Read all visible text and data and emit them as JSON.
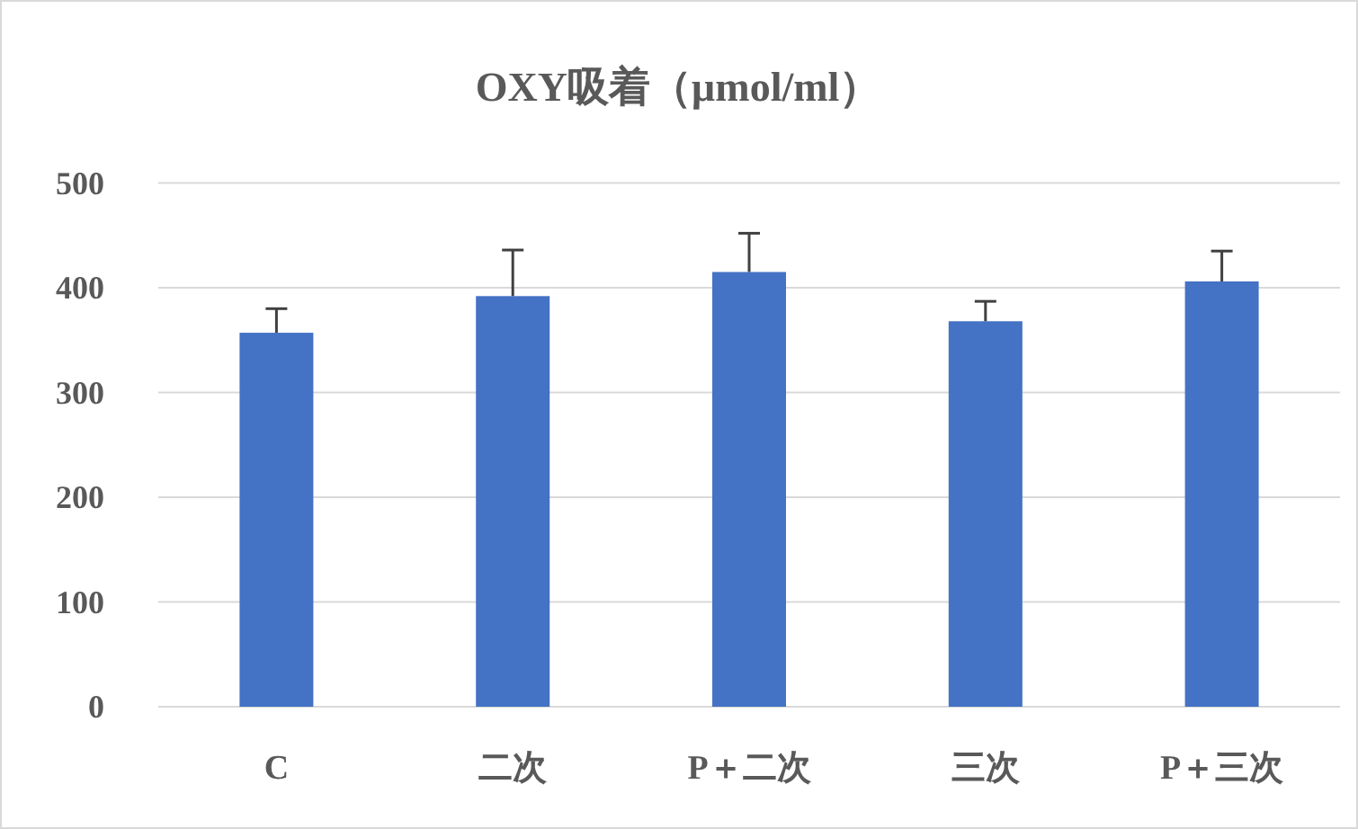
{
  "chart_data": {
    "type": "bar",
    "title": "OXY吸着（µmol/ml）",
    "categories": [
      "C",
      "二次",
      "P＋二次",
      "三次",
      "P＋三次"
    ],
    "values": [
      357,
      392,
      415,
      368,
      406
    ],
    "errors": [
      [
        357,
        380
      ],
      [
        392,
        436
      ],
      [
        415,
        452
      ],
      [
        368,
        387
      ],
      [
        406,
        435
      ]
    ],
    "color": "#4472c4",
    "ylim": [
      0,
      500
    ],
    "yticks": [
      0,
      100,
      200,
      300,
      400,
      500
    ],
    "grid": "y"
  }
}
